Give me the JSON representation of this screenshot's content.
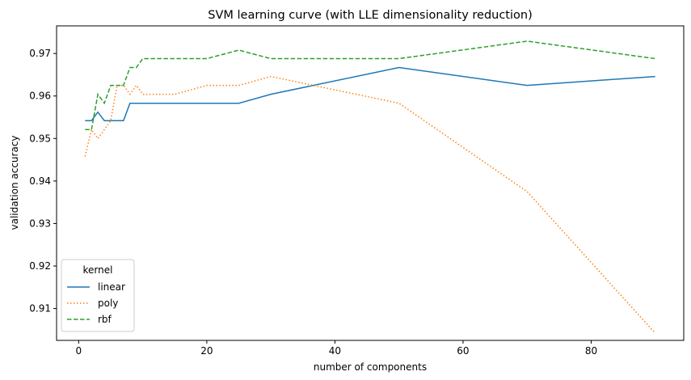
{
  "chart_data": {
    "type": "line",
    "title": "SVM learning curve (with LLE dimensionality reduction)",
    "xlabel": "number of components",
    "ylabel": "validation accuracy",
    "xlim": [
      -3.45,
      94.45
    ],
    "ylim": [
      0.9025,
      0.9765
    ],
    "xticks": [
      0,
      20,
      40,
      60,
      80
    ],
    "yticks": [
      0.91,
      0.92,
      0.93,
      0.94,
      0.95,
      0.96,
      0.97
    ],
    "xtick_labels": [
      "0",
      "20",
      "40",
      "60",
      "80"
    ],
    "ytick_labels": [
      "0.91",
      "0.92",
      "0.93",
      "0.94",
      "0.95",
      "0.96",
      "0.97"
    ],
    "grid": false,
    "legend": {
      "title": "kernel",
      "placement": "lower-left"
    },
    "series": [
      {
        "name": "linear",
        "color": "#1f77b4",
        "dash": "solid",
        "x": [
          1,
          2,
          3,
          4,
          5,
          6,
          7,
          8,
          9,
          10,
          15,
          20,
          25,
          30,
          50,
          70,
          90
        ],
        "y": [
          0.9542,
          0.9542,
          0.9562,
          0.9542,
          0.9542,
          0.9542,
          0.9542,
          0.9583,
          0.9583,
          0.9583,
          0.9583,
          0.9583,
          0.9583,
          0.9604,
          0.9667,
          0.9625,
          0.9646
        ]
      },
      {
        "name": "poly",
        "color": "#ff7f0e",
        "dash": "dotted",
        "x": [
          1,
          2,
          3,
          4,
          5,
          6,
          7,
          8,
          9,
          10,
          15,
          20,
          25,
          30,
          50,
          70,
          90
        ],
        "y": [
          0.9458,
          0.9521,
          0.95,
          0.9521,
          0.9542,
          0.9625,
          0.9625,
          0.9604,
          0.9625,
          0.9604,
          0.9604,
          0.9625,
          0.9625,
          0.9646,
          0.9583,
          0.9375,
          0.9042
        ]
      },
      {
        "name": "rbf",
        "color": "#2ca02c",
        "dash": "dashed",
        "x": [
          1,
          2,
          3,
          4,
          5,
          6,
          7,
          8,
          9,
          10,
          15,
          20,
          25,
          30,
          50,
          70,
          90
        ],
        "y": [
          0.9521,
          0.9521,
          0.9604,
          0.9583,
          0.9625,
          0.9625,
          0.9625,
          0.9667,
          0.9667,
          0.9688,
          0.9688,
          0.9688,
          0.9708,
          0.9688,
          0.9688,
          0.9729,
          0.9688
        ]
      }
    ]
  }
}
